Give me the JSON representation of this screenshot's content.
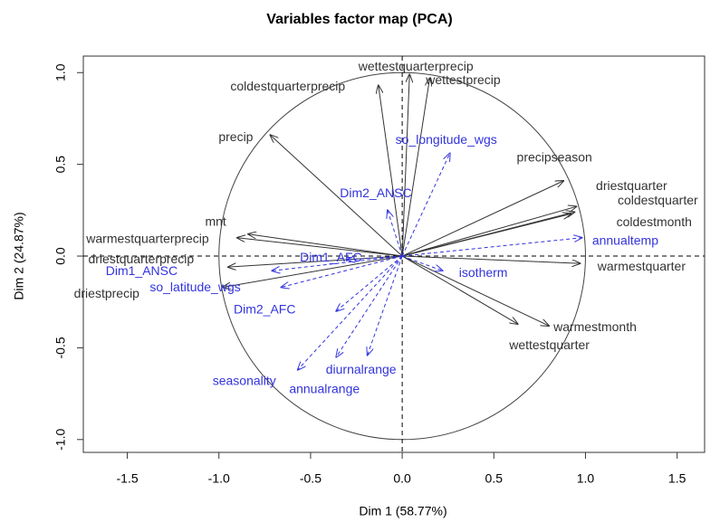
{
  "chart_data": {
    "type": "pca",
    "title": "Variables factor map (PCA)",
    "xlabel": "Dim 1 (58.77%)",
    "ylabel": "Dim 2 (24.87%)",
    "xlim": [
      -1.74,
      1.65
    ],
    "ylim": [
      -1.07,
      1.09
    ],
    "xticks": [
      -1.5,
      {
        "value": -1,
        "label": "-1.0"
      },
      -0.5,
      {
        "value": 0,
        "label": "0.0"
      },
      0.5,
      {
        "value": 1,
        "label": "1.0"
      },
      1.5
    ],
    "yticks": [
      {
        "value": -1,
        "label": "-1.0"
      },
      -0.5,
      {
        "value": 0,
        "label": "0.0"
      },
      0.5,
      {
        "value": 1,
        "label": "1.0"
      }
    ],
    "circle": true,
    "reference_lines": true,
    "series": [
      {
        "color": "#333333",
        "dashed": false,
        "labels": [
          "coldestquarterprecip",
          "wettestquarterprecip",
          "wettestprecip",
          "precip",
          "precipseason",
          "driestquarter",
          "coldestquarter",
          "coldestmonth",
          "warmestquarter",
          "warmestmonth",
          "wettestquarter",
          "mnt",
          "warmestquarterprecip",
          "driestquarterprecip",
          "driestprecip"
        ],
        "x": [
          -0.13,
          0.04,
          0.15,
          -0.72,
          0.88,
          0.95,
          0.94,
          0.92,
          0.97,
          0.8,
          0.63,
          -0.84,
          -0.9,
          -0.95,
          -0.98
        ],
        "values": [
          0.93,
          0.99,
          0.97,
          0.66,
          0.41,
          0.27,
          0.24,
          0.23,
          -0.04,
          -0.38,
          -0.37,
          0.12,
          0.1,
          -0.06,
          -0.17
        ]
      },
      {
        "color": "#3333dd",
        "dashed": true,
        "labels": [
          "so_longitude_wgs",
          "Dim2_ANSC",
          "annualtemp",
          "isotherm",
          "Dim1_AFC",
          "Dim1_ANSC",
          "so_latitude_wgs",
          "Dim2_AFC",
          "seasonality",
          "annualrange",
          "diurnalrange"
        ],
        "x": [
          0.26,
          -0.08,
          0.98,
          0.22,
          -0.3,
          -0.71,
          -0.66,
          -0.36,
          -0.57,
          -0.36,
          -0.19
        ],
        "values": [
          0.56,
          0.25,
          0.1,
          -0.08,
          -0.02,
          -0.08,
          -0.17,
          -0.3,
          -0.62,
          -0.55,
          -0.54
        ]
      }
    ]
  }
}
